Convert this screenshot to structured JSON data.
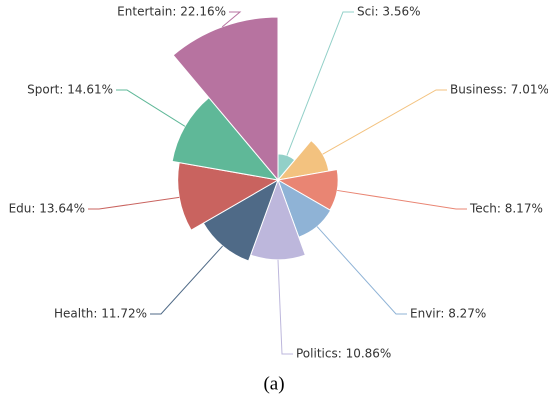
{
  "chart_data": {
    "type": "rose",
    "caption": "(a)",
    "categories": [
      "Sci",
      "Business",
      "Tech",
      "Envir",
      "Politics",
      "Health",
      "Edu",
      "Sport",
      "Entertain"
    ],
    "values": [
      3.56,
      7.01,
      8.17,
      8.27,
      10.86,
      11.72,
      13.64,
      14.61,
      22.16
    ],
    "value_labels": [
      "Sci: 3.56%",
      "Business: 7.01%",
      "Tech: 8.17%",
      "Envir: 8.27%",
      "Politics: 10.86%",
      "Health: 11.72%",
      "Edu: 13.64%",
      "Sport: 14.61%",
      "Entertain: 22.16%"
    ],
    "colors": [
      "#92d0c8",
      "#f3c27f",
      "#e98573",
      "#8fb3d6",
      "#bdb7dc",
      "#4f6a87",
      "#c9635f",
      "#5fb898",
      "#b773a0"
    ]
  }
}
